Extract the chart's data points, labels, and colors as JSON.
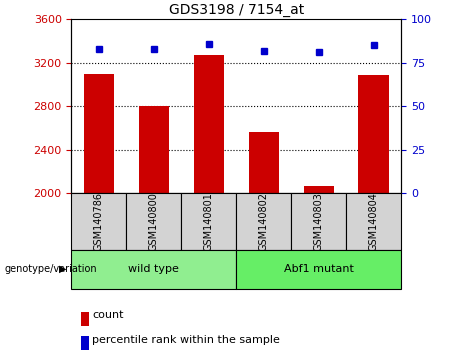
{
  "title": "GDS3198 / 7154_at",
  "samples": [
    "GSM140786",
    "GSM140800",
    "GSM140801",
    "GSM140802",
    "GSM140803",
    "GSM140804"
  ],
  "counts": [
    3100,
    2800,
    3270,
    2560,
    2060,
    3090
  ],
  "percentiles": [
    83,
    83,
    86,
    82,
    81,
    85
  ],
  "groups": [
    "wild type",
    "wild type",
    "wild type",
    "Abf1 mutant",
    "Abf1 mutant",
    "Abf1 mutant"
  ],
  "bar_color": "#CC0000",
  "dot_color": "#0000CC",
  "ylim_left": [
    2000,
    3600
  ],
  "ylim_right": [
    0,
    100
  ],
  "yticks_left": [
    2000,
    2400,
    2800,
    3200,
    3600
  ],
  "yticks_right": [
    0,
    25,
    50,
    75,
    100
  ],
  "grid_ticks": [
    2400,
    2800,
    3200
  ],
  "background_color": "#ffffff",
  "group_label": "genotype/variation",
  "wild_type_color": "#90EE90",
  "abf1_color": "#66EE66"
}
